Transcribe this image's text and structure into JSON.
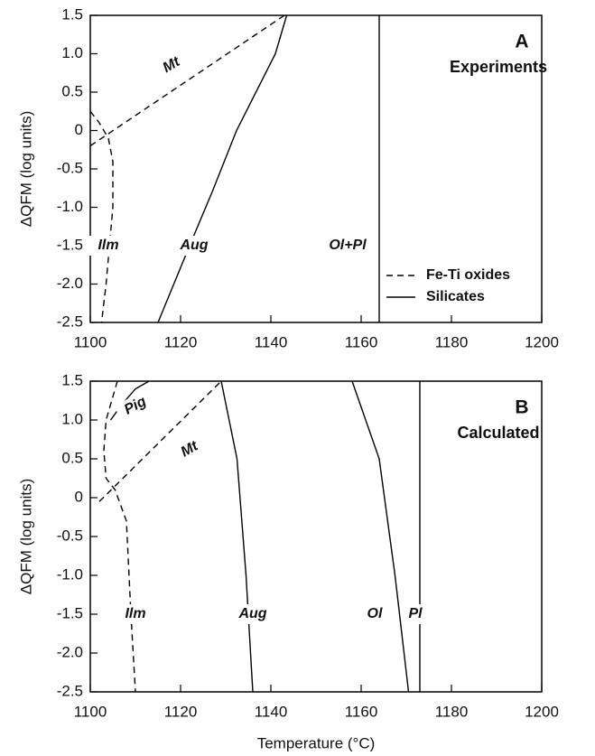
{
  "chart_data": [
    {
      "type": "line",
      "panel": "A",
      "subtitle": "Experiments",
      "ylabel": "ΔQFM (log units)",
      "xlim": [
        1100,
        1200
      ],
      "xticks": [
        1100,
        1120,
        1140,
        1160,
        1180,
        1200
      ],
      "ylim": [
        -2.5,
        1.5
      ],
      "yticks": [
        1.5,
        {
          "value": 1.0,
          "label": "1.0"
        },
        0.5,
        0,
        -0.5,
        {
          "value": -1.0,
          "label": "-1.0"
        },
        -1.5,
        {
          "value": -2.0,
          "label": "-2.0"
        },
        -2.5
      ],
      "legend": [
        {
          "label": "Fe-Ti oxides",
          "dashed": true
        },
        {
          "label": "Silicates",
          "dashed": false
        }
      ],
      "series": [
        {
          "name": "Mt",
          "dashed": true,
          "x": [
            1100,
            1143
          ],
          "y": [
            -0.2,
            1.5
          ]
        },
        {
          "name": "Ilm",
          "dashed": true,
          "x": [
            1100,
            1102,
            1104,
            1105,
            1105,
            1103.5,
            1102.5
          ],
          "y": [
            0.25,
            0.1,
            -0.1,
            -0.4,
            -1.0,
            -2.0,
            -2.5
          ]
        },
        {
          "name": "Aug",
          "dashed": false,
          "x": [
            1115,
            1122,
            1127,
            1132.4,
            1141,
            1143.5
          ],
          "y": [
            -2.5,
            -1.5,
            -0.8,
            0,
            1.0,
            1.5
          ]
        },
        {
          "name": "Ol+Pl",
          "dashed": false,
          "x": [
            1164,
            1164
          ],
          "y": [
            -2.5,
            1.5
          ]
        }
      ]
    },
    {
      "type": "line",
      "panel": "B",
      "subtitle": "Calculated",
      "ylabel": "ΔQFM (log units)",
      "xlabel": "Temperature (°C)",
      "xlim": [
        1100,
        1200
      ],
      "xticks": [
        1100,
        1120,
        1140,
        1160,
        1180,
        1200
      ],
      "ylim": [
        -2.5,
        1.5
      ],
      "yticks": [
        1.5,
        {
          "value": 1.0,
          "label": "1.0"
        },
        0.5,
        0,
        -0.5,
        {
          "value": -1.0,
          "label": "-1.0"
        },
        -1.5,
        {
          "value": -2.0,
          "label": "-2.0"
        },
        -2.5
      ],
      "series": [
        {
          "name": "Pig",
          "dashed": false,
          "x": [
            1104.5,
            1107,
            1110,
            1113
          ],
          "y": [
            1.0,
            1.2,
            1.4,
            1.5
          ]
        },
        {
          "name": "Mt",
          "dashed": true,
          "x": [
            1102,
            1129
          ],
          "y": [
            -0.05,
            1.5
          ]
        },
        {
          "name": "Ilm",
          "dashed": true,
          "x": [
            1106,
            1103.5,
            1103,
            1103.5,
            1105.5,
            1108,
            1109,
            1110
          ],
          "y": [
            1.5,
            1.0,
            0.6,
            0.25,
            0.1,
            -0.3,
            -1.5,
            -2.5
          ]
        },
        {
          "name": "Aug",
          "dashed": false,
          "x": [
            1129,
            1132.5,
            1134.5,
            1136
          ],
          "y": [
            1.5,
            0.5,
            -1.0,
            -2.5
          ]
        },
        {
          "name": "Ol",
          "dashed": false,
          "x": [
            1158,
            1164,
            1167.5,
            1170.5
          ],
          "y": [
            1.5,
            0.5,
            -1.0,
            -2.5
          ]
        },
        {
          "name": "Pl",
          "dashed": false,
          "x": [
            1173,
            1173
          ],
          "y": [
            -2.5,
            1.5
          ]
        }
      ]
    }
  ]
}
